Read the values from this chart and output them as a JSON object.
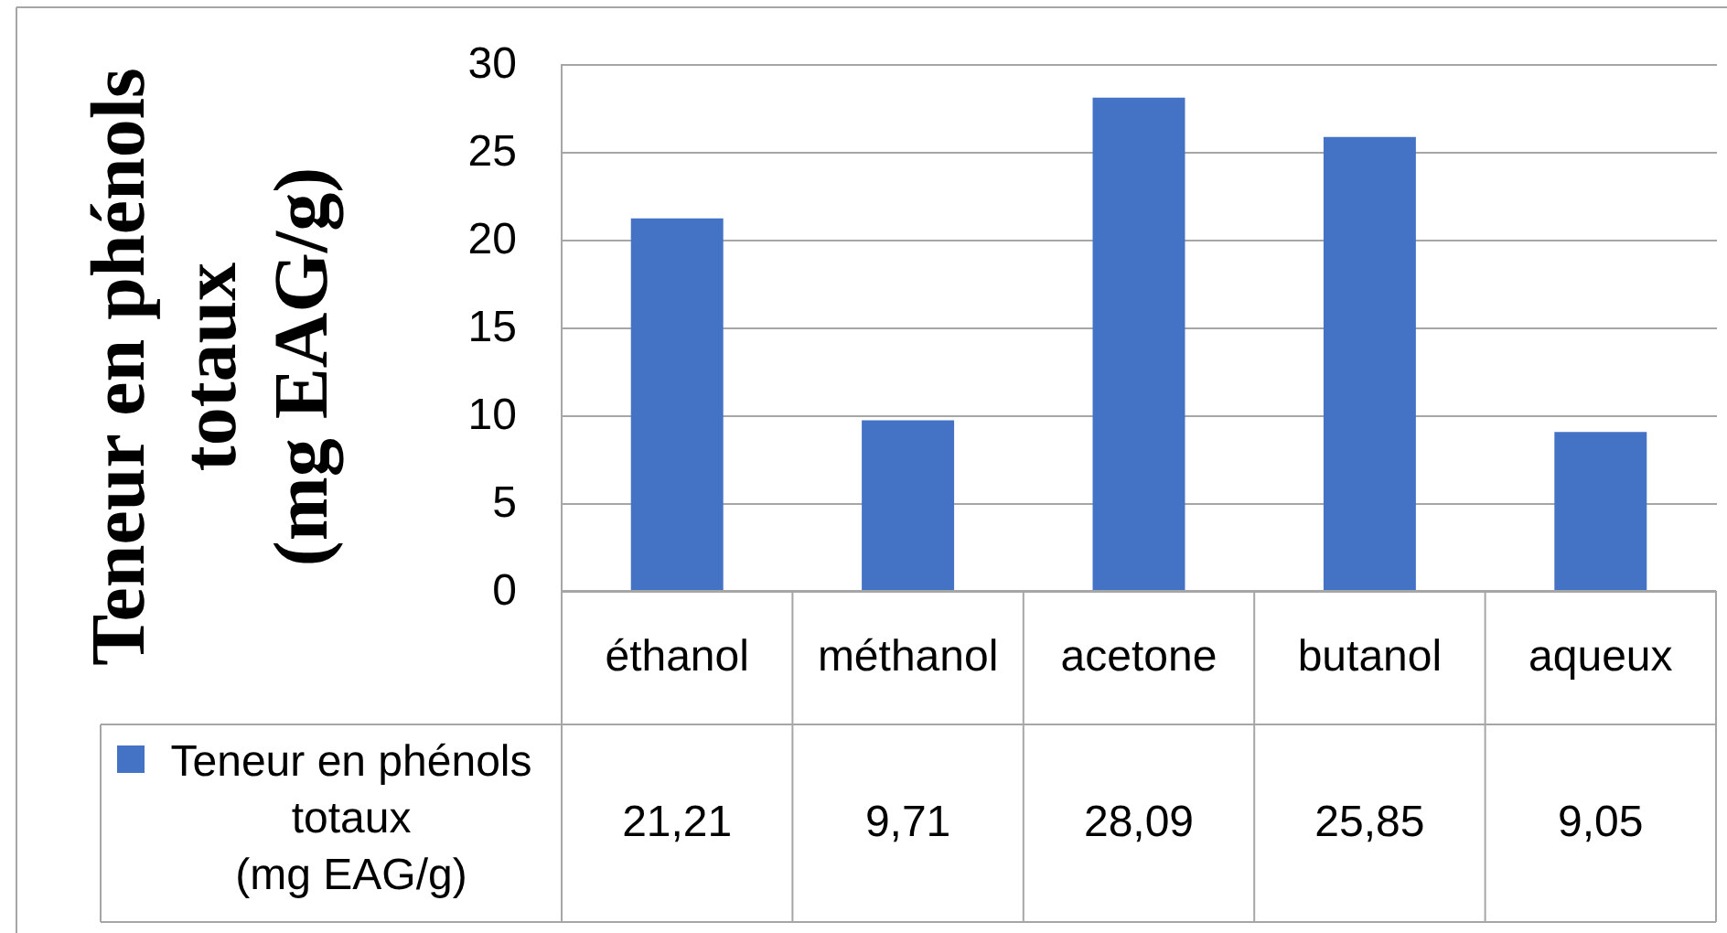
{
  "chart_data": {
    "type": "bar",
    "ylabel": "Teneur en phénols\ntotaux\n(mg EAG/g)",
    "categories": [
      "éthanol",
      "méthanol",
      "acetone",
      "butanol",
      "aqueux"
    ],
    "series": [
      {
        "name": "Teneur en phénols\ntotaux\n(mg EAG/g)",
        "color": "#4472c4",
        "values": [
          21.21,
          9.71,
          28.09,
          25.85,
          9.05
        ],
        "value_labels": [
          "21,21",
          "9,71",
          "28,09",
          "25,85",
          "9,05"
        ]
      }
    ],
    "ylim": [
      0,
      30
    ],
    "yticks": [
      0,
      5,
      10,
      15,
      20,
      25,
      30
    ],
    "grid": "y",
    "legend": "bottom left"
  }
}
